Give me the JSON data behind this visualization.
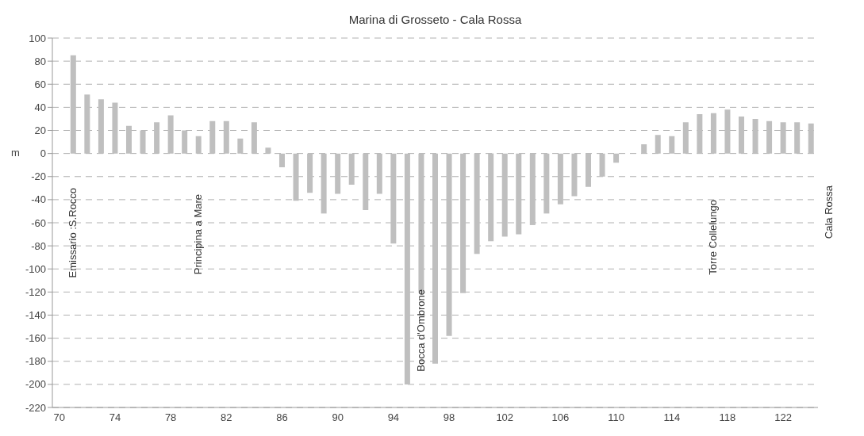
{
  "chart_data": {
    "type": "bar",
    "title": "Marina di Grosseto - Cala Rossa",
    "ylabel": "m",
    "categories": [
      "70",
      null,
      null,
      null,
      "74",
      null,
      null,
      null,
      "78",
      null,
      null,
      null,
      "82",
      null,
      null,
      null,
      "86",
      null,
      null,
      null,
      "90",
      null,
      null,
      null,
      "94",
      null,
      null,
      null,
      "98",
      null,
      null,
      null,
      "102",
      null,
      null,
      null,
      "106",
      null,
      null,
      null,
      "110",
      null,
      null,
      null,
      "114",
      null,
      null,
      null,
      "118",
      null,
      null,
      null,
      "122",
      null,
      null
    ],
    "values": [
      null,
      85,
      51,
      47,
      44,
      24,
      20,
      27,
      33,
      20,
      15,
      28,
      28,
      13,
      27,
      5,
      -12,
      -41,
      -34,
      -52,
      -35,
      -27,
      -49,
      -35,
      -78,
      -200,
      -121,
      -182,
      -158,
      -121,
      -87,
      -76,
      -72,
      -70,
      -62,
      -52,
      -44,
      -37,
      -29,
      -20,
      -8,
      0,
      8,
      16,
      15,
      27,
      34,
      35,
      38,
      32,
      30,
      28,
      27,
      27,
      26
    ],
    "color": "#bfbfbf",
    "ylim": [
      -220,
      100
    ],
    "yticks": [
      -220,
      -200,
      -180,
      -160,
      -140,
      -120,
      -100,
      -80,
      -60,
      -40,
      -20,
      0,
      20,
      40,
      60,
      80,
      100
    ],
    "grid": "y",
    "annotations": [
      "Emissario :S.Rocco",
      "Principina a Mare",
      "Bocca d'Ombrone",
      "Torre Collelungo",
      "Cala Rossa"
    ]
  }
}
